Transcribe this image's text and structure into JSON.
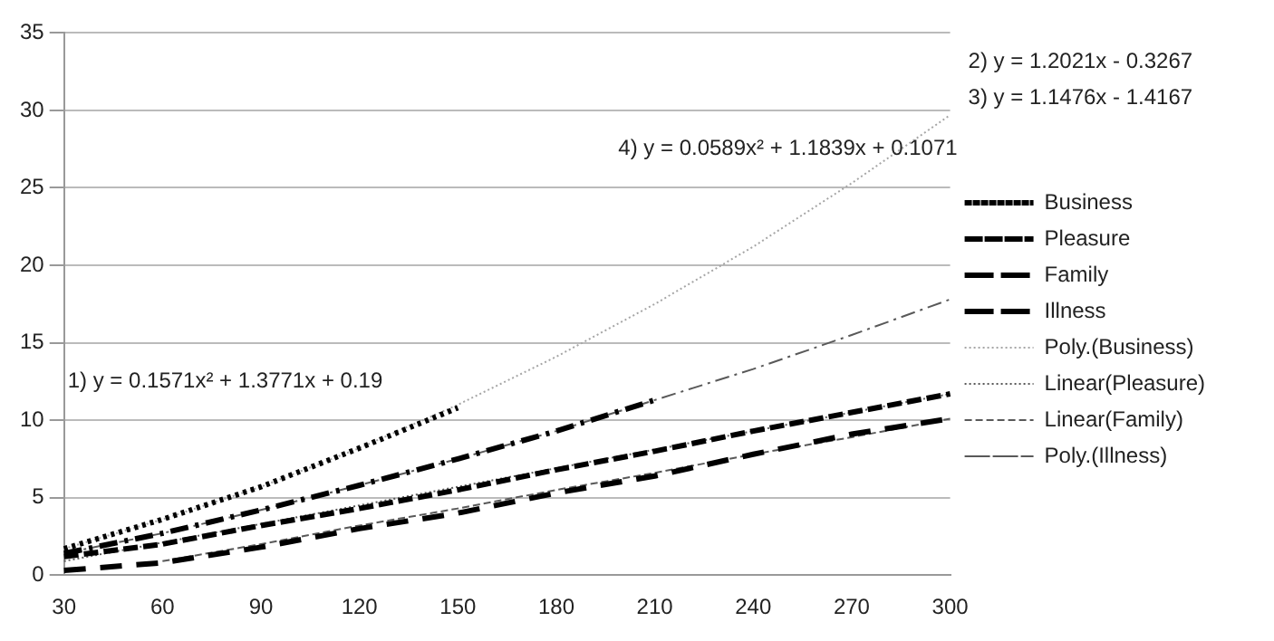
{
  "chart_data": {
    "type": "line",
    "categories": [
      "30",
      "60",
      "90",
      "120",
      "150",
      "180",
      "210",
      "240",
      "270",
      "300"
    ],
    "series": [
      {
        "name": "Business",
        "color": "#000000",
        "line_style": "dotted",
        "values": [
          1.7,
          3.6,
          5.7,
          8.2,
          10.8,
          null,
          null,
          null,
          null,
          null
        ]
      },
      {
        "name": "Pleasure",
        "color": "#000000",
        "line_style": "dashed",
        "values": [
          1.2,
          2.0,
          3.2,
          4.3,
          5.5,
          6.8,
          8.0,
          9.3,
          10.5,
          11.7
        ]
      },
      {
        "name": "Family",
        "color": "#000000",
        "line_style": "dashed",
        "values": [
          0.3,
          0.8,
          1.8,
          3.0,
          4.0,
          5.3,
          6.4,
          7.8,
          9.1,
          10.1
        ]
      },
      {
        "name": "Illness",
        "color": "#000000",
        "line_style": "dashed",
        "values": [
          1.4,
          2.7,
          4.2,
          5.8,
          7.5,
          9.3,
          11.3,
          null,
          null,
          null
        ]
      },
      {
        "name": "Poly.(Business)",
        "color": "#a6a6a6",
        "line_style": "dotted",
        "values": [
          1.7,
          3.6,
          5.7,
          8.2,
          11.0,
          14.1,
          17.5,
          21.2,
          25.3,
          29.7
        ]
      },
      {
        "name": "Linear(Pleasure)",
        "color": "#595959",
        "line_style": "dotted",
        "values": [
          0.9,
          2.1,
          3.3,
          4.5,
          5.7,
          6.9,
          8.1,
          9.3,
          10.5,
          11.7
        ]
      },
      {
        "name": "Linear(Family)",
        "color": "#595959",
        "line_style": "dashed",
        "values": [
          null,
          0.9,
          2.0,
          3.2,
          4.3,
          5.5,
          6.6,
          7.8,
          8.9,
          10.1
        ]
      },
      {
        "name": "Poly.(Illness)",
        "color": "#595959",
        "line_style": "dashed",
        "values": [
          1.4,
          2.7,
          4.2,
          5.8,
          7.5,
          9.3,
          11.3,
          13.3,
          15.5,
          17.8
        ]
      }
    ],
    "ylim": [
      0,
      35
    ],
    "yticks": [
      0,
      5,
      10,
      15,
      20,
      25,
      30,
      35
    ],
    "grid": "y",
    "legend": "right",
    "marker": "none",
    "annotations": [
      "1) y = 0.1571x² + 1.3771x + 0.19",
      "2) y = 1.2021x - 0.3267",
      "3) y = 1.1476x - 1.4167",
      "4) y = 0.0589x² + 1.1839x + 0.1071"
    ]
  }
}
